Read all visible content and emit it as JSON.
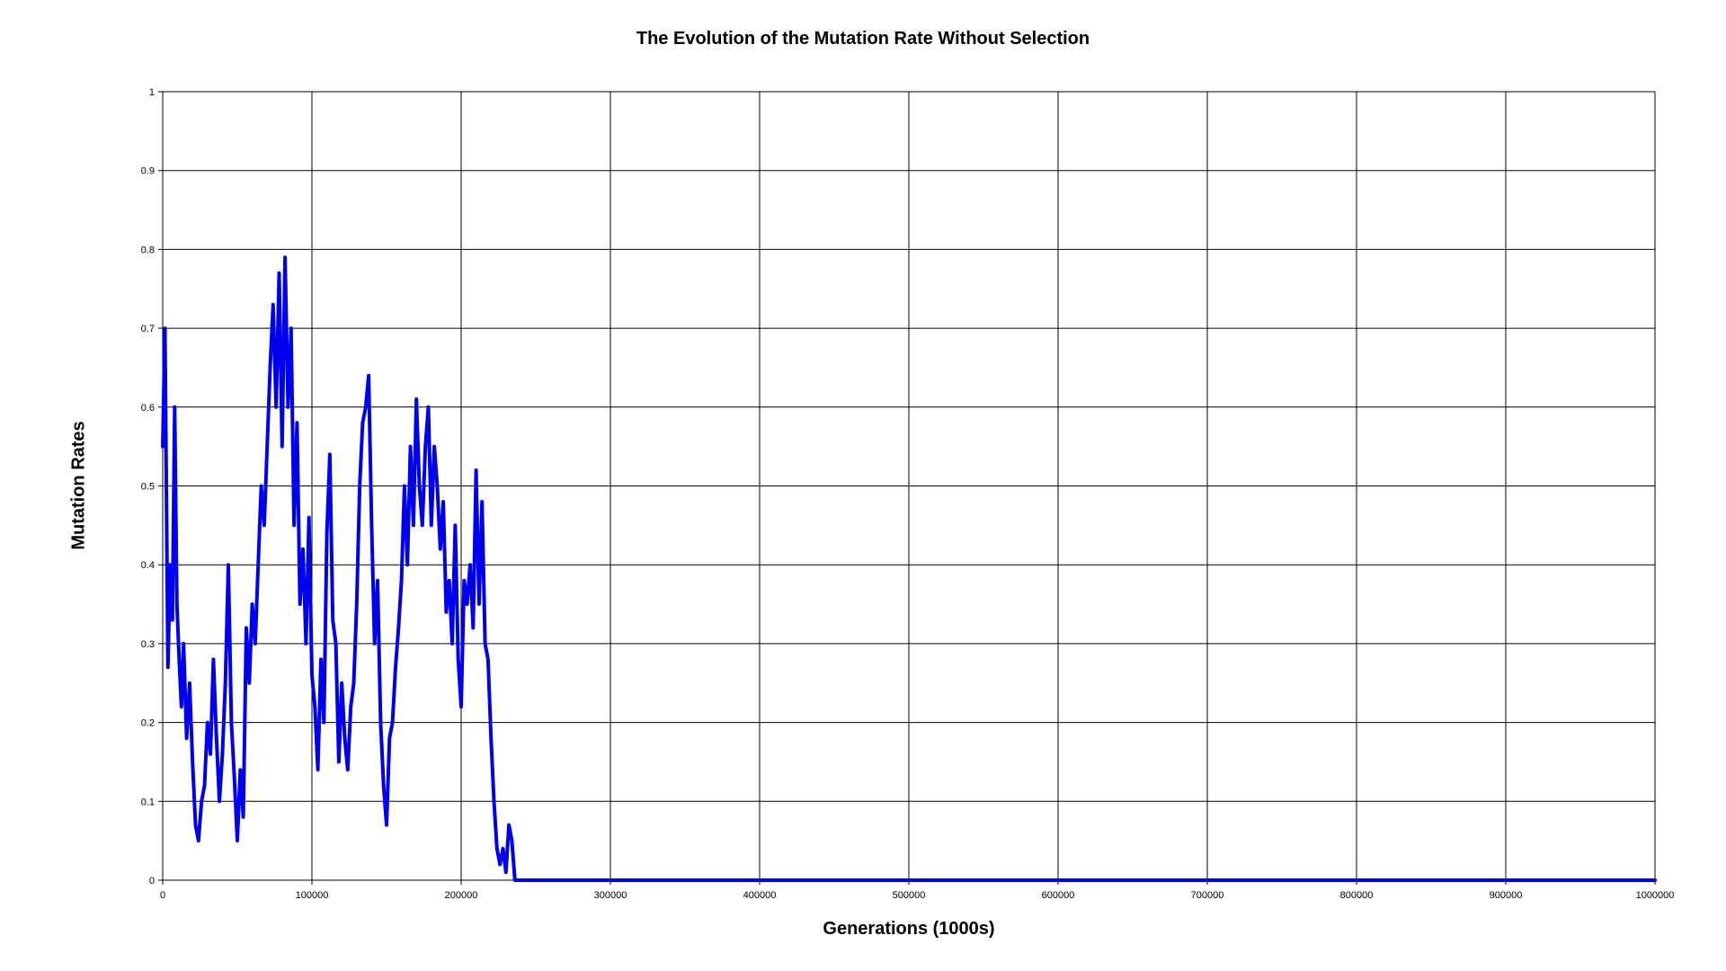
{
  "chart_data": {
    "type": "line",
    "title": "The Evolution of the Mutation Rate Without Selection",
    "xlabel": "Generations (1000s)",
    "ylabel": "Mutation Rates",
    "xlim": [
      0,
      1000000
    ],
    "ylim": [
      0,
      1
    ],
    "grid": true,
    "x_ticks": [
      "0",
      "100000",
      "200000",
      "300000",
      "400000",
      "500000",
      "600000",
      "700000",
      "800000",
      "900000",
      "1000000"
    ],
    "y_ticks": [
      "0",
      "0.1",
      "0.2",
      "0.3",
      "0.4",
      "0.5",
      "0.6",
      "0.7",
      "0.8",
      "0.9",
      "1"
    ],
    "series": [
      {
        "color": "#0000ee",
        "x": [
          0,
          1500,
          2500,
          3500,
          5000,
          6500,
          8000,
          9500,
          11000,
          12500,
          14000,
          16000,
          18000,
          20000,
          22000,
          24000,
          26000,
          28000,
          30000,
          32000,
          34000,
          36000,
          38000,
          40000,
          42000,
          44000,
          46000,
          48000,
          50000,
          52000,
          54000,
          56000,
          58000,
          60000,
          62000,
          64000,
          66000,
          68000,
          70000,
          72000,
          74000,
          76000,
          78000,
          80000,
          82000,
          84000,
          86000,
          88000,
          90000,
          92000,
          94000,
          96000,
          98000,
          100000,
          102000,
          104000,
          106000,
          108000,
          110000,
          112000,
          114000,
          116000,
          118000,
          120000,
          122000,
          124000,
          126000,
          128000,
          130000,
          132000,
          134000,
          136000,
          138000,
          140000,
          142000,
          144000,
          146000,
          148000,
          150000,
          152000,
          154000,
          156000,
          158000,
          160000,
          162000,
          164000,
          166000,
          168000,
          170000,
          172000,
          174000,
          176000,
          178000,
          180000,
          182000,
          184000,
          186000,
          188000,
          190000,
          192000,
          194000,
          196000,
          198000,
          200000,
          202000,
          204000,
          206000,
          208000,
          210000,
          212000,
          214000,
          216000,
          218000,
          220000,
          222000,
          224000,
          226000,
          228000,
          230000,
          232000,
          234000,
          236000,
          240000,
          300000,
          400000,
          500000,
          600000,
          700000,
          800000,
          900000,
          1000000
        ],
        "y": [
          0.55,
          0.7,
          0.48,
          0.27,
          0.4,
          0.33,
          0.6,
          0.35,
          0.28,
          0.22,
          0.3,
          0.18,
          0.25,
          0.15,
          0.07,
          0.05,
          0.1,
          0.12,
          0.2,
          0.16,
          0.28,
          0.18,
          0.1,
          0.16,
          0.25,
          0.4,
          0.2,
          0.13,
          0.05,
          0.14,
          0.08,
          0.32,
          0.25,
          0.35,
          0.3,
          0.4,
          0.5,
          0.45,
          0.55,
          0.65,
          0.73,
          0.6,
          0.77,
          0.55,
          0.79,
          0.6,
          0.7,
          0.45,
          0.58,
          0.35,
          0.42,
          0.3,
          0.46,
          0.26,
          0.22,
          0.14,
          0.28,
          0.2,
          0.44,
          0.54,
          0.33,
          0.3,
          0.15,
          0.25,
          0.18,
          0.14,
          0.22,
          0.25,
          0.35,
          0.5,
          0.58,
          0.6,
          0.64,
          0.45,
          0.3,
          0.38,
          0.2,
          0.12,
          0.07,
          0.18,
          0.2,
          0.27,
          0.32,
          0.38,
          0.5,
          0.4,
          0.55,
          0.45,
          0.61,
          0.5,
          0.45,
          0.55,
          0.6,
          0.45,
          0.55,
          0.5,
          0.42,
          0.48,
          0.34,
          0.38,
          0.3,
          0.45,
          0.28,
          0.22,
          0.38,
          0.35,
          0.4,
          0.32,
          0.52,
          0.35,
          0.48,
          0.3,
          0.28,
          0.18,
          0.1,
          0.04,
          0.02,
          0.04,
          0.01,
          0.07,
          0.05,
          0.0,
          0.0,
          0.0,
          0.0,
          0.0,
          0.0,
          0.0,
          0.0,
          0.0,
          0.0
        ]
      }
    ]
  }
}
